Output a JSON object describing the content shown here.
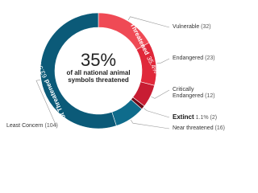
{
  "chart_data": {
    "type": "donut",
    "center_text": "35%",
    "center_subtext": "of all national animal symbols threatened",
    "slices": [
      {
        "name": "Vulnerable",
        "value": 32,
        "value_label": "(32)",
        "color": "#ef4a55"
      },
      {
        "name": "Endangered",
        "value": 23,
        "value_label": "(23)",
        "color": "#e0283a"
      },
      {
        "name": "Critically Endangered",
        "value": 12,
        "value_label": "(12)",
        "color": "#c81d33"
      },
      {
        "name": "Extinct",
        "value": 2,
        "value_label": "(2)",
        "share": 1.1,
        "share_label": "1.1%",
        "color": "#6e0b19"
      },
      {
        "name": "Near threatened",
        "value": 16,
        "value_label": "(16)",
        "color": "#0f6c8c"
      },
      {
        "name": "Least Concern",
        "value": 104,
        "value_label": "(104)",
        "color": "#0b5a78"
      }
    ],
    "groups": [
      {
        "name": "Threatened",
        "share": 35.4,
        "share_label": "35.4%",
        "slices": [
          0,
          1,
          2
        ]
      },
      {
        "name": "Not Threatened",
        "share": 63.5,
        "share_label": "63.5%",
        "slices": [
          4,
          5
        ]
      }
    ]
  }
}
